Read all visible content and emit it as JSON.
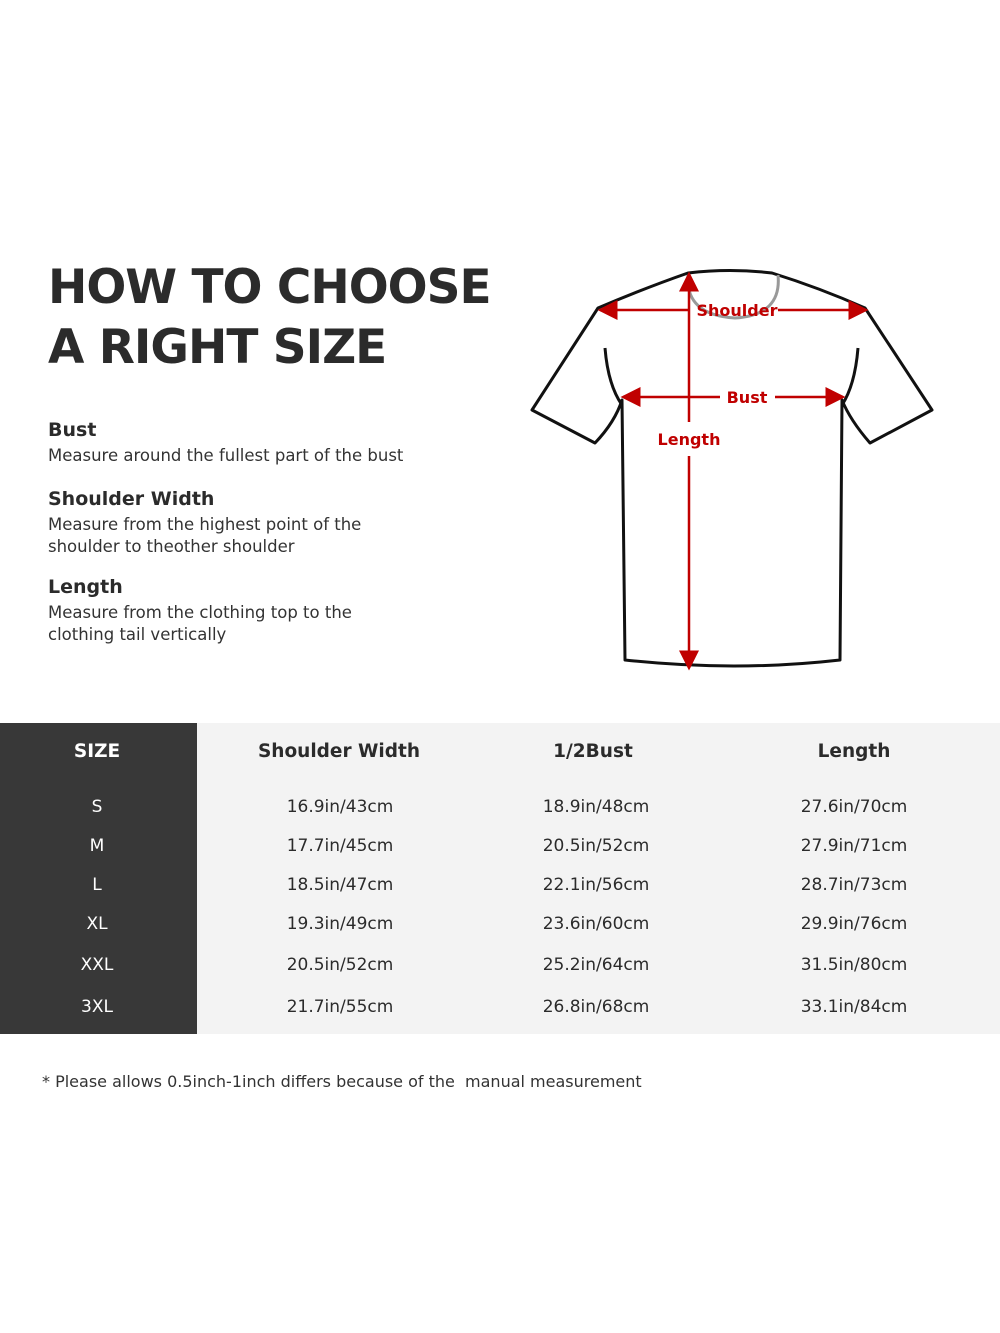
{
  "title": {
    "line1": "HOW TO CHOOSE",
    "line2": "A RIGHT SIZE"
  },
  "definitions": [
    {
      "term": "Bust",
      "description": "Measure around the fullest part of the bust"
    },
    {
      "term": "Shoulder Width",
      "description_lines": [
        "Measure from the highest point of the",
        "shoulder to theother shoulder"
      ]
    },
    {
      "term": "Length",
      "description_lines": [
        "Measure from the clothing top to the",
        "clothing tail vertically"
      ]
    }
  ],
  "diagram": {
    "labels": {
      "shoulder": "Shoulder",
      "bust": "Bust",
      "length": "Length"
    },
    "arrow_color": "#c00000"
  },
  "table": {
    "headers": [
      "SIZE",
      "Shoulder Width",
      "1/2Bust",
      "Length"
    ],
    "rows": [
      [
        "S",
        "16.9in/43cm",
        "18.9in/48cm",
        "27.6in/70cm"
      ],
      [
        "M",
        "17.7in/45cm",
        "20.5in/52cm",
        "27.9in/71cm"
      ],
      [
        "L",
        "18.5in/47cm",
        "22.1in/56cm",
        "28.7in/73cm"
      ],
      [
        "XL",
        "19.3in/49cm",
        "23.6in/60cm",
        "29.9in/76cm"
      ],
      [
        "XXL",
        "20.5in/52cm",
        "25.2in/64cm",
        "31.5in/80cm"
      ],
      [
        "3XL",
        "21.7in/55cm",
        "26.8in/68cm",
        "33.1in/84cm"
      ]
    ]
  },
  "note": "* Please allows 0.5inch-1inch differs because of the  manual measurement"
}
